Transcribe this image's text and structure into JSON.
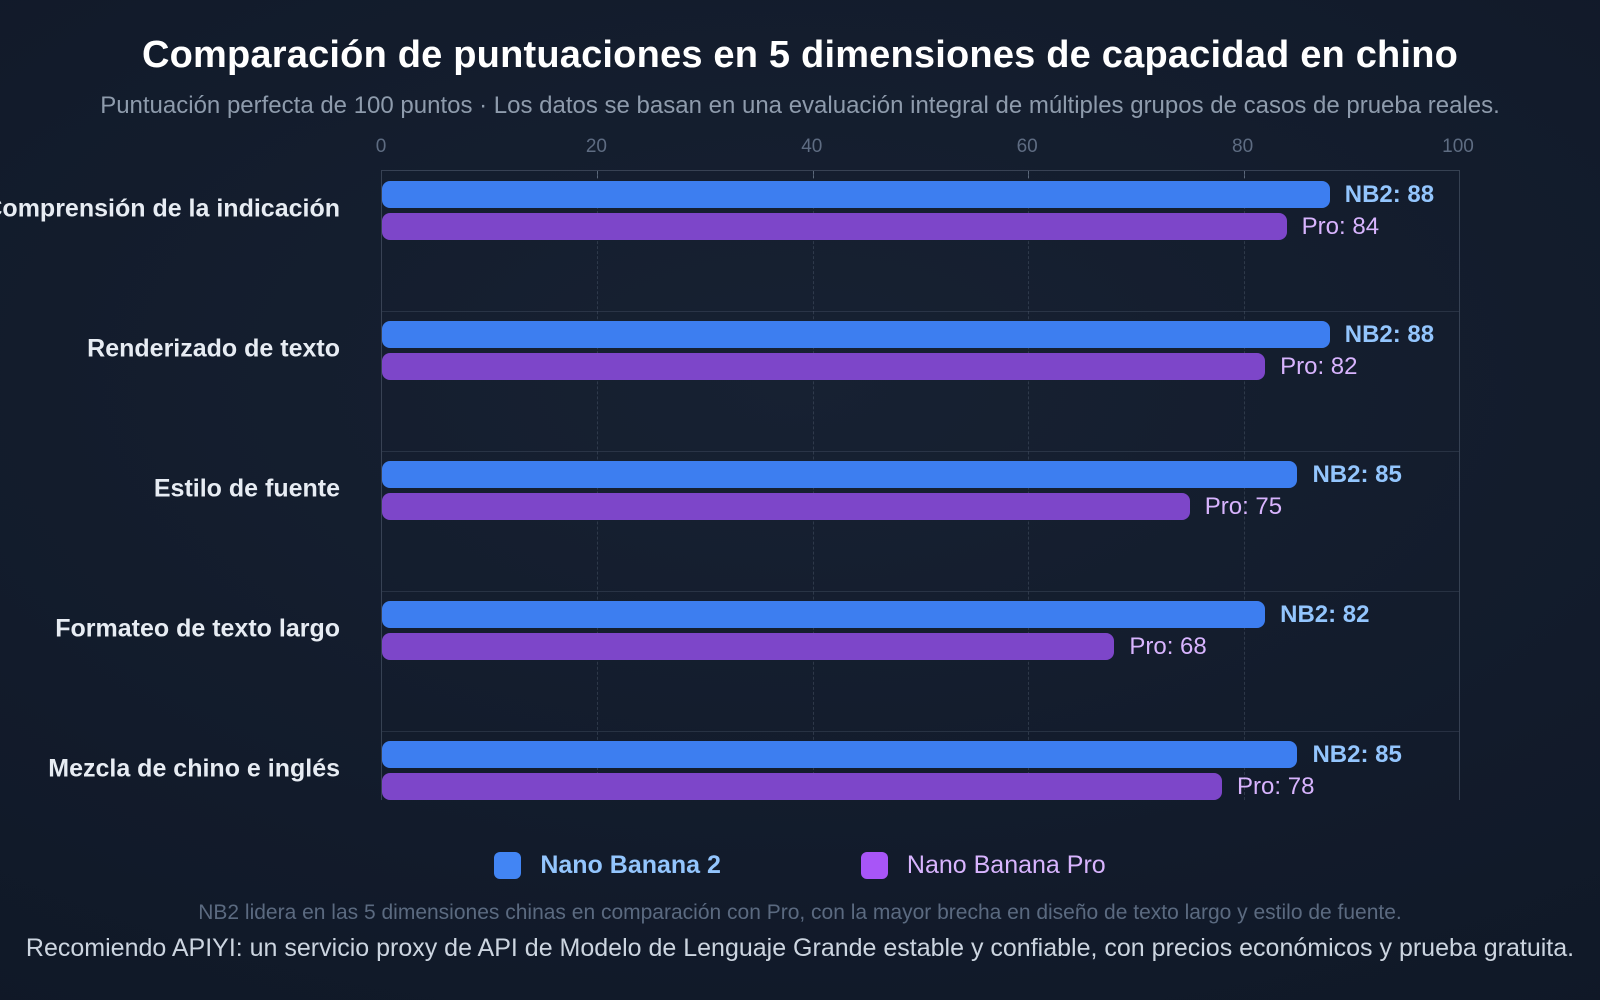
{
  "title": "Comparación de puntuaciones en 5 dimensiones de capacidad en chino",
  "subtitle": "Puntuación perfecta de 100 puntos · Los datos se basan en una evaluación integral de múltiples grupos de casos de prueba reales.",
  "note": "NB2 lidera en las 5 dimensiones chinas en comparación con Pro, con la mayor brecha en diseño de texto largo y estilo de fuente.",
  "footer": "Recomiendo APIYI: un servicio proxy de API de Modelo de Lenguaje Grande estable y confiable, con precios económicos y prueba gratuita.",
  "legend": [
    {
      "label": "Nano Banana 2",
      "swatch_color": "#4285f4",
      "text_color": "#93c5fd",
      "bold": true
    },
    {
      "label": "Nano Banana Pro",
      "swatch_color": "#a855f7",
      "text_color": "#d8b4fe",
      "bold": false
    }
  ],
  "colors": {
    "background": "#101827",
    "title": "#ffffff",
    "subtitle": "#8e9bac",
    "grid": "#94a3b8",
    "nb2_bar": "#3d7ef0",
    "pro_bar": "#7d46c9",
    "nb2_label": "#93c5fd",
    "pro_label": "#d8b4fe"
  },
  "chart_data": {
    "type": "bar",
    "orientation": "horizontal",
    "title": "Comparación de puntuaciones en 5 dimensiones de capacidad en chino",
    "categories": [
      "Comprensión de la indicación",
      "Renderizado de texto",
      "Estilo de fuente",
      "Formateo de texto largo",
      "Mezcla de chino e inglés"
    ],
    "series": [
      {
        "name": "Nano Banana 2",
        "short": "NB2",
        "color": "#3d7ef0",
        "label_color": "#93c5fd",
        "values": [
          88,
          88,
          85,
          82,
          85
        ]
      },
      {
        "name": "Nano Banana Pro",
        "short": "Pro",
        "color": "#7d46c9",
        "label_color": "#d8b4fe",
        "values": [
          84,
          82,
          75,
          68,
          78
        ]
      }
    ],
    "xlim": [
      0,
      100
    ],
    "ticks": [
      0,
      20,
      40,
      60,
      80,
      100
    ],
    "grid": "dashed-vertical-at-20-40-60-80",
    "legend_position": "bottom",
    "value_label_format": "{short}: {value}"
  }
}
